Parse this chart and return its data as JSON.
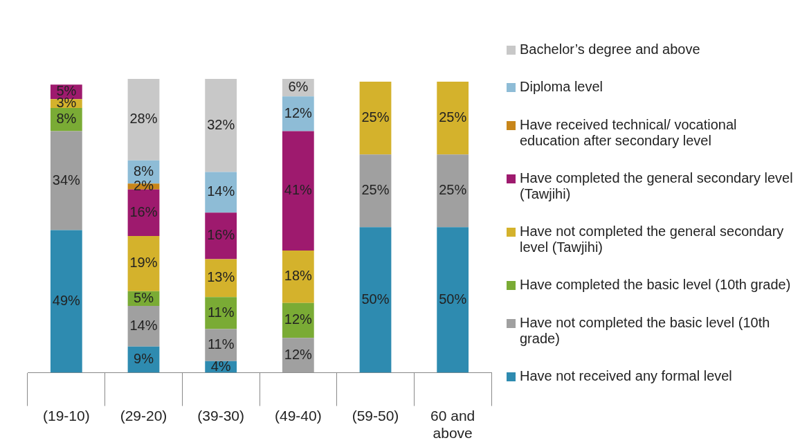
{
  "chart_data": {
    "type": "bar",
    "stacked": true,
    "categories": [
      "(19-10)",
      "(29-20)",
      "(39-30)",
      "(49-40)",
      "(59-50)",
      "60 and above"
    ],
    "series": [
      {
        "name": "Have not received any formal level",
        "color": "#2e8bb0",
        "values": [
          49,
          9,
          4,
          null,
          50,
          50
        ],
        "value_labels": [
          "49%",
          "9%",
          "4%",
          null,
          "50%",
          "50%"
        ]
      },
      {
        "name": "Have not completed the basic level (10th grade)",
        "color": "#a0a0a0",
        "values": [
          34,
          14,
          11,
          12,
          25,
          25
        ],
        "value_labels": [
          "34%",
          "14%",
          "11%",
          "12%",
          "25%",
          "25%"
        ]
      },
      {
        "name": "Have completed the basic level (10th grade)",
        "color": "#7aab35",
        "values": [
          8,
          5,
          11,
          12,
          null,
          null
        ],
        "value_labels": [
          "8%",
          "5%",
          "11%",
          "12%",
          null,
          null
        ]
      },
      {
        "name": "Have not completed the general secondary level (Tawjihi)",
        "color": "#d4b22c",
        "values": [
          3,
          19,
          13,
          18,
          25,
          25
        ],
        "value_labels": [
          "3%",
          "19%",
          "13%",
          "18%",
          "25%",
          "25%"
        ]
      },
      {
        "name": "Have completed the general secondary level (Tawjihi)",
        "color": "#9e1a6e",
        "values": [
          5,
          16,
          16,
          41,
          null,
          null
        ],
        "value_labels": [
          "5%",
          "16%",
          "16%",
          "41%",
          null,
          null
        ]
      },
      {
        "name": "Have received technical/ vocational education after secondary level",
        "color": "#c8861a",
        "values": [
          null,
          2,
          null,
          null,
          null,
          null
        ],
        "value_labels": [
          null,
          "2%",
          null,
          null,
          null,
          null
        ]
      },
      {
        "name": "Diploma level",
        "color": "#8ebcd6",
        "values": [
          null,
          8,
          14,
          12,
          null,
          null
        ],
        "value_labels": [
          null,
          "8%",
          "14%",
          "12%",
          null,
          null
        ]
      },
      {
        "name": "Bachelor’s degree and above",
        "color": "#c8c8c8",
        "values": [
          null,
          28,
          32,
          6,
          null,
          null
        ],
        "value_labels": [
          null,
          "28%",
          "32%",
          "6%",
          null,
          null
        ]
      }
    ],
    "legend": "right",
    "tick_labels": "x",
    "grid": false
  }
}
